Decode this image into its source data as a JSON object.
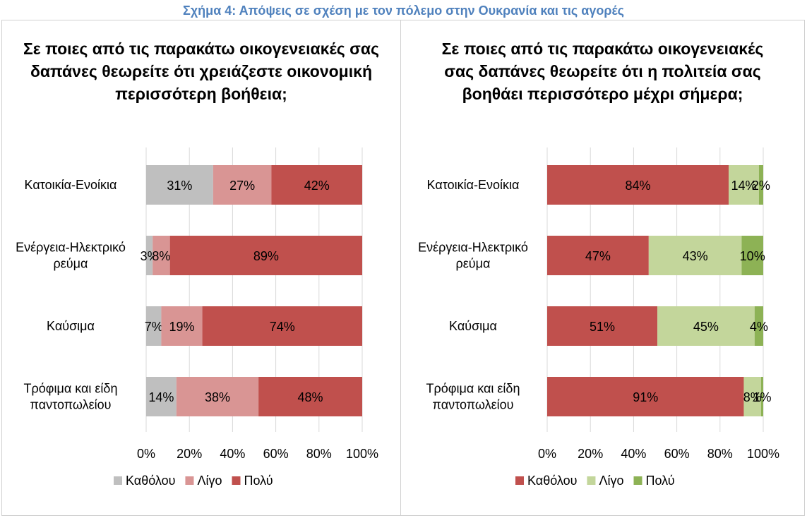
{
  "figure_caption": "Σχήμα 4: Απόψεις σε σχέση με τον πόλεμο στην Ουκρανία και τις αγορές",
  "chart_data": [
    {
      "type": "bar",
      "orientation": "horizontal",
      "stacked": true,
      "title": "Σε ποιες από τις παρακάτω οικογενειακές σας δαπάνες θεωρείτε ότι χρειάζεστε οικονομική περισσότερη βοήθεια;",
      "categories": [
        [
          "Κατοικία-Ενοίκια"
        ],
        [
          "Ενέργεια-Ηλεκτρικό",
          "ρεύμα"
        ],
        [
          "Καύσιμα"
        ],
        [
          "Τρόφιμα και είδη",
          "παντοπωλείου"
        ]
      ],
      "series": [
        {
          "name": "Καθόλου",
          "color": "#bfbfbf",
          "values": [
            31,
            3,
            7,
            14
          ],
          "labels": [
            "31%",
            "3%",
            "7%",
            "14%"
          ]
        },
        {
          "name": "Λίγο",
          "color": "#d99594",
          "values": [
            27,
            8,
            19,
            38
          ],
          "labels": [
            "27%",
            "8%",
            "19%",
            "38%"
          ]
        },
        {
          "name": "Πολύ",
          "color": "#c0504d",
          "values": [
            42,
            89,
            74,
            48
          ],
          "labels": [
            "42%",
            "89%",
            "74%",
            "48%"
          ]
        }
      ],
      "x_ticks": [
        "0%",
        "20%",
        "40%",
        "60%",
        "80%",
        "100%"
      ],
      "xlim": [
        0,
        100
      ],
      "grid": "vertical",
      "legend_position": "bottom"
    },
    {
      "type": "bar",
      "orientation": "horizontal",
      "stacked": true,
      "title": "Σε ποιες από τις παρακάτω οικογενειακές σας δαπάνες θεωρείτε ότι η πολιτεία σας βοηθάει περισσότερο μέχρι σήμερα;",
      "categories": [
        [
          "Κατοικία-Ενοίκια"
        ],
        [
          "Ενέργεια-Ηλεκτρικό",
          "ρεύμα"
        ],
        [
          "Καύσιμα"
        ],
        [
          "Τρόφιμα και είδη",
          "παντοπωλείου"
        ]
      ],
      "series": [
        {
          "name": "Καθόλου",
          "color": "#c0504d",
          "values": [
            84,
            47,
            51,
            91
          ],
          "labels": [
            "84%",
            "47%",
            "51%",
            "91%"
          ]
        },
        {
          "name": "Λίγο",
          "color": "#c3d69b",
          "values": [
            14,
            43,
            45,
            8
          ],
          "labels": [
            "14%",
            "43%",
            "45%",
            "8%"
          ]
        },
        {
          "name": "Πολύ",
          "color": "#8db255",
          "values": [
            2,
            10,
            4,
            1
          ],
          "labels": [
            "2%",
            "10%",
            "4%",
            "1%"
          ]
        }
      ],
      "x_ticks": [
        "0%",
        "20%",
        "40%",
        "60%",
        "80%",
        "100%"
      ],
      "xlim": [
        0,
        100
      ],
      "grid": "vertical",
      "legend_position": "bottom"
    }
  ]
}
